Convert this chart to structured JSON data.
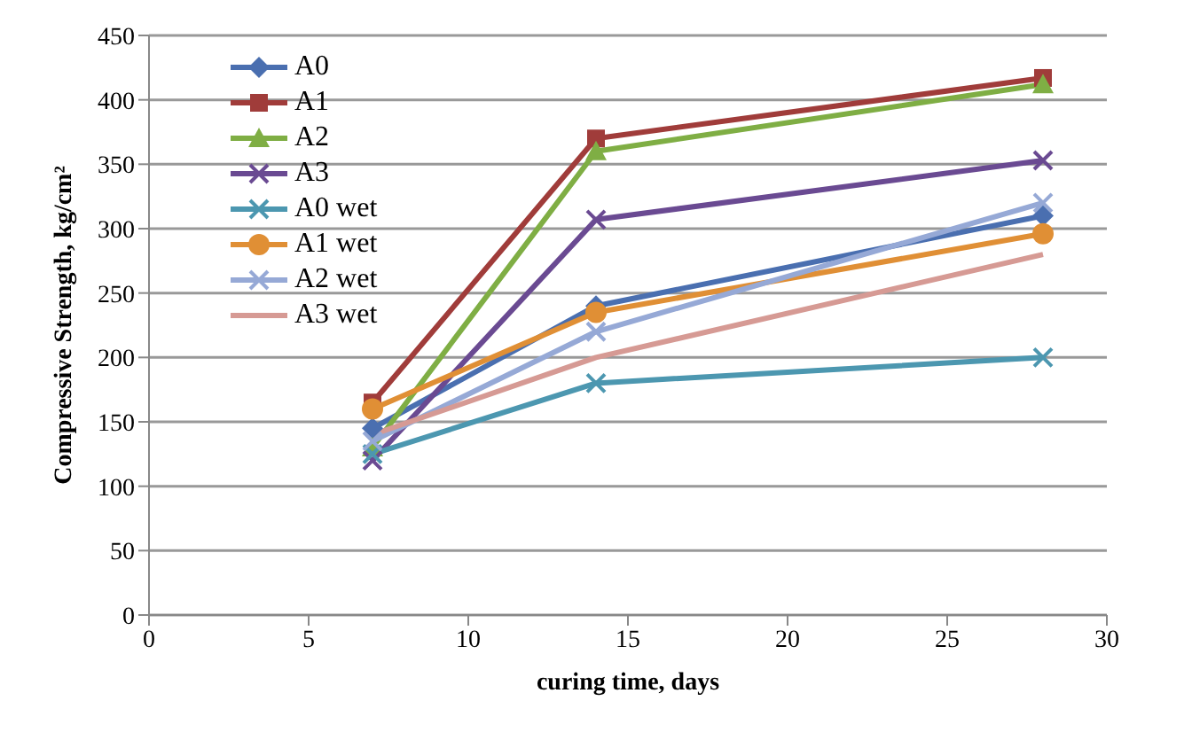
{
  "chart_data": {
    "type": "line",
    "xlabel": "curing time, days",
    "ylabel": "Compressive Strength, kg/cm²",
    "x": [
      7,
      14,
      28
    ],
    "xlim": [
      0,
      30
    ],
    "xticks": [
      0,
      5,
      10,
      15,
      20,
      25,
      30
    ],
    "ylim": [
      0,
      450
    ],
    "yticks": [
      0,
      50,
      100,
      150,
      200,
      250,
      300,
      350,
      400,
      450
    ],
    "grid": "y",
    "legend": "top left",
    "line_style": "solid",
    "series": [
      {
        "name": "A0",
        "color": "#4a6fb0",
        "marker": "diamond",
        "values": [
          145,
          240,
          310
        ]
      },
      {
        "name": "A1",
        "color": "#a03c3a",
        "marker": "square",
        "values": [
          165,
          370,
          417
        ]
      },
      {
        "name": "A2",
        "color": "#7fae44",
        "marker": "triangle",
        "values": [
          130,
          360,
          412
        ]
      },
      {
        "name": "A3",
        "color": "#6a4a92",
        "marker": "cross",
        "values": [
          120,
          307,
          353
        ]
      },
      {
        "name": "A0 wet",
        "color": "#4c97b0",
        "marker": "cross",
        "values": [
          125,
          180,
          200
        ]
      },
      {
        "name": "A1 wet",
        "color": "#e08f35",
        "marker": "circle",
        "values": [
          160,
          235,
          296
        ]
      },
      {
        "name": "A2 wet",
        "color": "#96a9d6",
        "marker": "cross",
        "values": [
          135,
          220,
          320
        ]
      },
      {
        "name": "A3 wet",
        "color": "#d69a94",
        "marker": "none",
        "values": [
          140,
          200,
          280
        ]
      }
    ]
  }
}
